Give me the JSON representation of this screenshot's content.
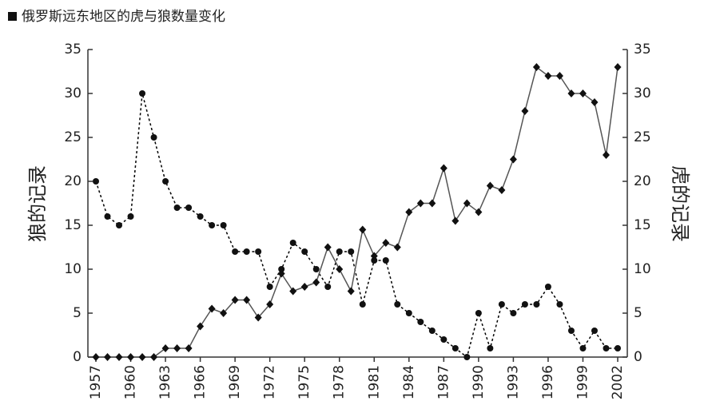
{
  "chart_data": {
    "type": "line",
    "title": "俄罗斯远东地区的虎与狼数量变化",
    "ylabel": "狼的记录",
    "y2label": "虎的记录",
    "x": [
      1957,
      1958,
      1959,
      1960,
      1961,
      1962,
      1963,
      1964,
      1965,
      1966,
      1967,
      1968,
      1969,
      1970,
      1971,
      1972,
      1973,
      1974,
      1975,
      1976,
      1977,
      1978,
      1979,
      1980,
      1981,
      1982,
      1983,
      1984,
      1985,
      1986,
      1987,
      1988,
      1989,
      1990,
      1991,
      1992,
      1993,
      1994,
      1995,
      1996,
      1997,
      1998,
      1999,
      2000,
      2001,
      2002
    ],
    "xlim": [
      1957,
      2002
    ],
    "xticks": [
      1957,
      1960,
      1963,
      1966,
      1969,
      1972,
      1975,
      1978,
      1981,
      1984,
      1987,
      1990,
      1993,
      1996,
      1999,
      2002
    ],
    "ylim": [
      0,
      35
    ],
    "yticks": [
      0,
      5,
      10,
      15,
      20,
      25,
      30,
      35
    ],
    "y2lim": [
      0,
      35
    ],
    "y2ticks": [
      0,
      5,
      10,
      15,
      20,
      25,
      30,
      35
    ],
    "series": [
      {
        "color": "#000000",
        "marker": "circle",
        "dashed": true,
        "values": [
          20,
          16,
          15,
          16,
          30,
          25,
          20,
          17,
          17,
          16,
          15,
          15,
          12,
          12,
          12,
          8,
          10,
          13,
          12,
          10,
          8,
          12,
          12,
          6,
          11,
          11,
          6,
          5,
          4,
          3,
          2,
          1,
          0,
          5,
          1,
          6,
          5,
          6,
          6,
          8,
          6,
          3,
          1,
          3,
          1,
          1
        ]
      },
      {
        "color": "#555555",
        "marker": "diamond",
        "dashed": false,
        "axis": "y2",
        "values": [
          0,
          0,
          0,
          0,
          0,
          0,
          1,
          1,
          1,
          3.5,
          5.5,
          5,
          6.5,
          6.5,
          4.5,
          6,
          9.5,
          7.5,
          8,
          8.5,
          12.5,
          10,
          7.5,
          14.5,
          11.5,
          13,
          12.5,
          16.5,
          17.5,
          17.5,
          21.5,
          15.5,
          17.5,
          16.5,
          19.5,
          19,
          22.5,
          28,
          33,
          32,
          32,
          30,
          30,
          29,
          23,
          33
        ]
      }
    ]
  }
}
